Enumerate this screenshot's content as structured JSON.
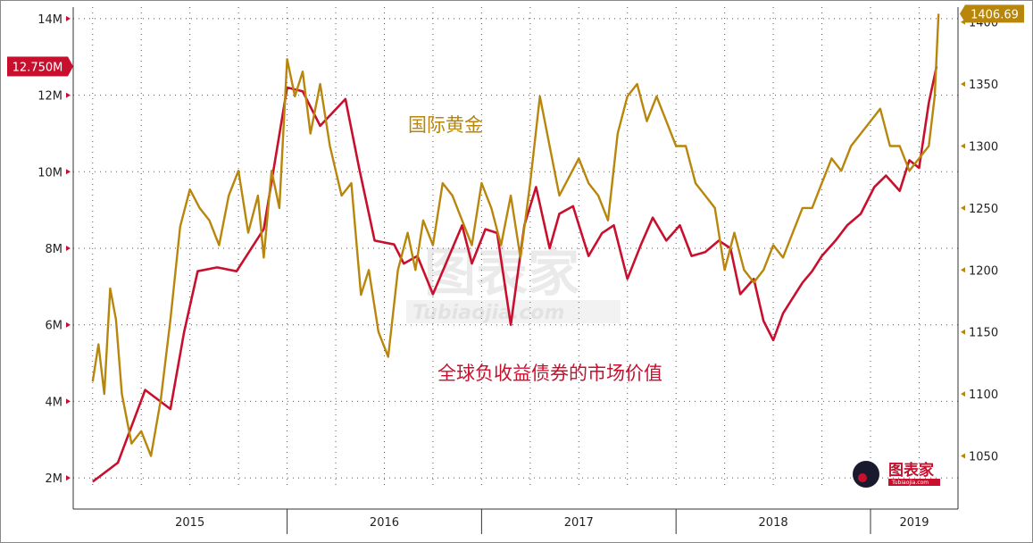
{
  "chart_data": {
    "type": "line",
    "title": "",
    "x_axis": {
      "years": [
        "2015",
        "2016",
        "2017",
        "2018",
        "2019"
      ],
      "range": [
        2014.9,
        2019.45
      ]
    },
    "y_left": {
      "ticks": [
        "2M",
        "4M",
        "6M",
        "8M",
        "10M",
        "12M",
        "14M"
      ],
      "range": [
        1.7,
        14.3
      ],
      "current_value_label": "12.750M"
    },
    "y_right": {
      "ticks": [
        "1050",
        "1100",
        "1150",
        "1200",
        "1250",
        "1300",
        "1350",
        "1400"
      ],
      "range": [
        1023,
        1412
      ],
      "current_value_label": "1406.69"
    },
    "grid": true,
    "series": [
      {
        "name": "全球负收益债券的市场价值",
        "axis": "left",
        "color": "#c8102e",
        "x": [
          2015.0,
          2015.13,
          2015.27,
          2015.4,
          2015.47,
          2015.54,
          2015.64,
          2015.74,
          2015.88,
          2016.0,
          2016.08,
          2016.17,
          2016.3,
          2016.37,
          2016.45,
          2016.55,
          2016.6,
          2016.67,
          2016.75,
          2016.8,
          2016.85,
          2016.9,
          2016.95,
          2017.02,
          2017.08,
          2017.15,
          2017.22,
          2017.28,
          2017.35,
          2017.4,
          2017.47,
          2017.55,
          2017.62,
          2017.68,
          2017.75,
          2017.82,
          2017.88,
          2017.95,
          2018.02,
          2018.08,
          2018.15,
          2018.22,
          2018.28,
          2018.33,
          2018.4,
          2018.45,
          2018.5,
          2018.55,
          2018.6,
          2018.65,
          2018.7,
          2018.75,
          2018.82,
          2018.88,
          2018.95,
          2019.02,
          2019.08,
          2019.15,
          2019.2,
          2019.25,
          2019.3,
          2019.34
        ],
        "values": [
          1.9,
          2.4,
          4.3,
          3.8,
          5.8,
          7.4,
          7.5,
          7.4,
          8.5,
          12.2,
          12.1,
          11.2,
          11.9,
          10.1,
          8.2,
          8.1,
          7.6,
          7.8,
          6.8,
          7.4,
          8.0,
          8.6,
          7.6,
          8.5,
          8.4,
          6.0,
          8.6,
          9.6,
          8.0,
          8.9,
          9.1,
          7.8,
          8.4,
          8.6,
          7.2,
          8.1,
          8.8,
          8.2,
          8.6,
          7.8,
          7.9,
          8.2,
          8.0,
          6.8,
          7.2,
          6.1,
          5.6,
          6.3,
          6.7,
          7.1,
          7.4,
          7.8,
          8.2,
          8.6,
          8.9,
          9.6,
          9.9,
          9.5,
          10.3,
          10.1,
          11.8,
          12.75
        ]
      },
      {
        "name": "国际黄金",
        "axis": "right",
        "color": "#b8860b",
        "x": [
          2015.0,
          2015.03,
          2015.06,
          2015.09,
          2015.12,
          2015.15,
          2015.2,
          2015.25,
          2015.3,
          2015.35,
          2015.4,
          2015.45,
          2015.5,
          2015.55,
          2015.6,
          2015.65,
          2015.7,
          2015.75,
          2015.8,
          2015.85,
          2015.88,
          2015.92,
          2015.96,
          2016.0,
          2016.04,
          2016.08,
          2016.12,
          2016.17,
          2016.22,
          2016.28,
          2016.33,
          2016.38,
          2016.42,
          2016.47,
          2016.52,
          2016.57,
          2016.62,
          2016.66,
          2016.7,
          2016.75,
          2016.8,
          2016.85,
          2016.9,
          2016.95,
          2017.0,
          2017.05,
          2017.1,
          2017.15,
          2017.2,
          2017.25,
          2017.3,
          2017.35,
          2017.4,
          2017.45,
          2017.5,
          2017.55,
          2017.6,
          2017.65,
          2017.7,
          2017.75,
          2017.8,
          2017.85,
          2017.9,
          2017.95,
          2018.0,
          2018.05,
          2018.1,
          2018.15,
          2018.2,
          2018.25,
          2018.3,
          2018.35,
          2018.4,
          2018.45,
          2018.5,
          2018.55,
          2018.6,
          2018.65,
          2018.7,
          2018.75,
          2018.8,
          2018.85,
          2018.9,
          2018.95,
          2019.0,
          2019.05,
          2019.1,
          2019.15,
          2019.2,
          2019.25,
          2019.3,
          2019.33,
          2019.35
        ],
        "values": [
          1110,
          1140,
          1100,
          1185,
          1160,
          1100,
          1060,
          1070,
          1050,
          1095,
          1160,
          1235,
          1265,
          1250,
          1240,
          1220,
          1260,
          1280,
          1230,
          1260,
          1210,
          1280,
          1250,
          1370,
          1340,
          1360,
          1310,
          1350,
          1300,
          1260,
          1270,
          1180,
          1200,
          1150,
          1130,
          1200,
          1230,
          1200,
          1240,
          1220,
          1270,
          1260,
          1240,
          1220,
          1270,
          1250,
          1220,
          1260,
          1210,
          1270,
          1340,
          1300,
          1260,
          1275,
          1290,
          1270,
          1260,
          1240,
          1310,
          1340,
          1350,
          1320,
          1340,
          1320,
          1300,
          1300,
          1270,
          1260,
          1250,
          1200,
          1230,
          1200,
          1190,
          1200,
          1220,
          1210,
          1230,
          1250,
          1250,
          1270,
          1290,
          1280,
          1300,
          1310,
          1320,
          1330,
          1300,
          1300,
          1280,
          1290,
          1300,
          1340,
          1406.69
        ]
      }
    ],
    "annotations": [
      {
        "text": "国际黄金",
        "series": "gold"
      },
      {
        "text": "全球负收益债券的市场价值",
        "series": "red"
      }
    ]
  },
  "watermark": {
    "main": "图表家",
    "sub": "Tubiaojia.com"
  },
  "logo": {
    "text": "图表家",
    "sub": "Tubiaojia.com"
  }
}
